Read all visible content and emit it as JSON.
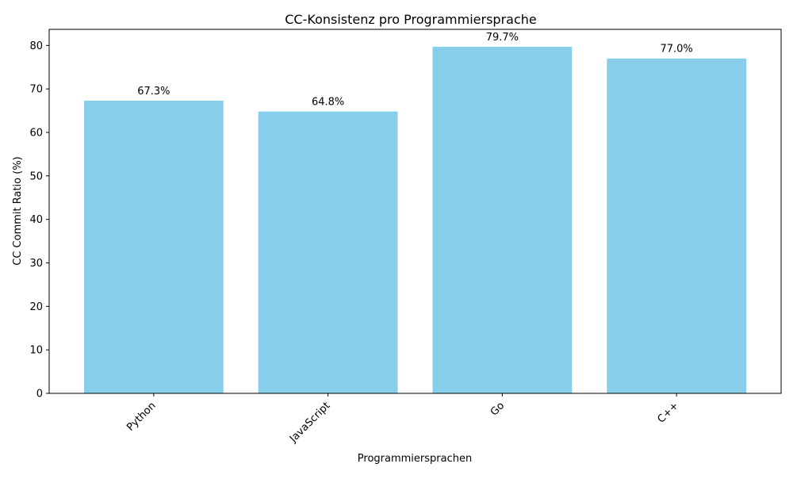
{
  "chart_data": {
    "type": "bar",
    "title": "CC-Konsistenz pro Programmiersprache",
    "xlabel": "Programmiersprachen",
    "ylabel": "CC Commit Ratio (%)",
    "categories": [
      "Python",
      "JavaScript",
      "Go",
      "C++"
    ],
    "values": [
      67.3,
      64.8,
      79.7,
      77.0
    ],
    "data_labels": [
      "67.3%",
      "64.8%",
      "79.7%",
      "77.0%"
    ],
    "ylim": [
      0,
      83.7
    ],
    "yticks": [
      0,
      10,
      20,
      30,
      40,
      50,
      60,
      70,
      80
    ],
    "grid": false,
    "legend": "none",
    "bar_color": "#87ceeb",
    "x_tick_rotation": 45
  }
}
